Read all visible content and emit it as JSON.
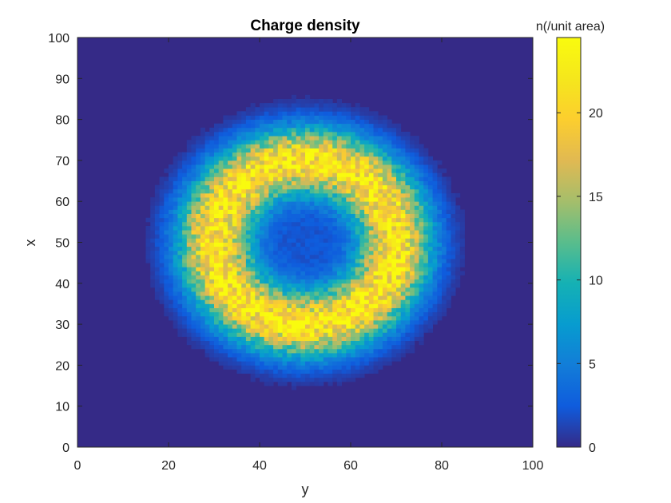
{
  "chart_data": {
    "type": "heatmap",
    "title": "Charge density",
    "xlabel": "y",
    "ylabel": "x",
    "xlim": [
      0,
      100
    ],
    "ylim": [
      0,
      100
    ],
    "x_ticks": [
      0,
      20,
      40,
      60,
      80,
      100
    ],
    "y_ticks": [
      0,
      10,
      20,
      30,
      40,
      50,
      60,
      70,
      80,
      90,
      100
    ],
    "grid": false,
    "colormap": "parula",
    "colorbar": {
      "label": "n(/unit area)",
      "range": [
        0,
        24.5
      ],
      "ticks": [
        0,
        5,
        10,
        15,
        20
      ],
      "location": "right"
    },
    "field": {
      "shape": "ring",
      "center": [
        50,
        50
      ],
      "ring_radius": 20,
      "ring_width": 8,
      "peak_value": 22,
      "inner_value": 2,
      "background_value": 0,
      "outer_extent_radius": 37,
      "grid_bins": 100
    }
  }
}
